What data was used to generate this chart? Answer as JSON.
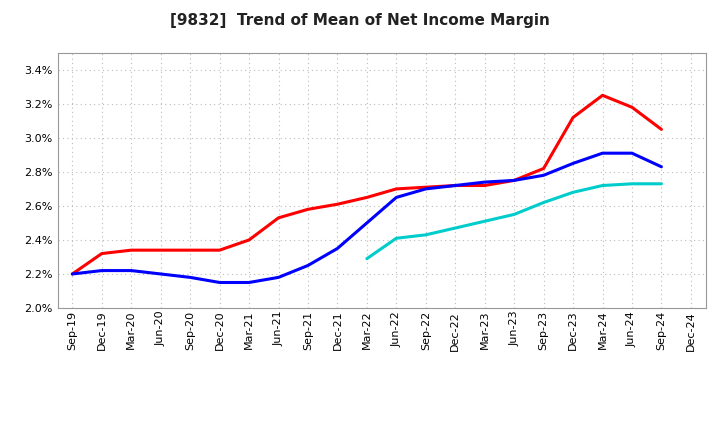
{
  "title": "[9832]  Trend of Mean of Net Income Margin",
  "x_labels": [
    "Sep-19",
    "Dec-19",
    "Mar-20",
    "Jun-20",
    "Sep-20",
    "Dec-20",
    "Mar-21",
    "Jun-21",
    "Sep-21",
    "Dec-21",
    "Mar-22",
    "Jun-22",
    "Sep-22",
    "Dec-22",
    "Mar-23",
    "Jun-23",
    "Sep-23",
    "Dec-23",
    "Mar-24",
    "Jun-24",
    "Sep-24",
    "Dec-24"
  ],
  "ylim": [
    0.02,
    0.035
  ],
  "yticks": [
    0.02,
    0.022,
    0.024,
    0.026,
    0.028,
    0.03,
    0.032,
    0.034
  ],
  "y3": [
    0.022,
    0.0232,
    0.0234,
    0.0234,
    0.0234,
    0.0234,
    0.024,
    0.0253,
    0.0258,
    0.0261,
    0.0265,
    0.027,
    0.0271,
    0.0272,
    0.0272,
    0.0275,
    0.0282,
    0.0312,
    0.0325,
    0.0318,
    0.0305,
    null
  ],
  "y5": [
    0.022,
    0.0222,
    0.0222,
    0.022,
    0.0218,
    0.0215,
    0.0215,
    0.0218,
    0.0225,
    0.0235,
    0.025,
    0.0265,
    0.027,
    0.0272,
    0.0274,
    0.0275,
    0.0278,
    0.0285,
    0.0291,
    0.0291,
    0.0283,
    null
  ],
  "y7": [
    null,
    null,
    null,
    null,
    null,
    null,
    null,
    null,
    null,
    null,
    0.0229,
    0.0241,
    0.0243,
    0.0247,
    0.0251,
    0.0255,
    0.0262,
    0.0268,
    0.0272,
    0.0273,
    0.0273,
    null
  ],
  "y10": [
    null,
    null,
    null,
    null,
    null,
    null,
    null,
    null,
    null,
    null,
    null,
    null,
    null,
    null,
    null,
    null,
    null,
    null,
    null,
    null,
    null,
    null
  ],
  "color_3yr": "#FF0000",
  "color_5yr": "#0000FF",
  "color_7yr": "#00CCCC",
  "color_10yr": "#008800",
  "background_color": "#FFFFFF",
  "title_fontsize": 11,
  "tick_fontsize": 8
}
